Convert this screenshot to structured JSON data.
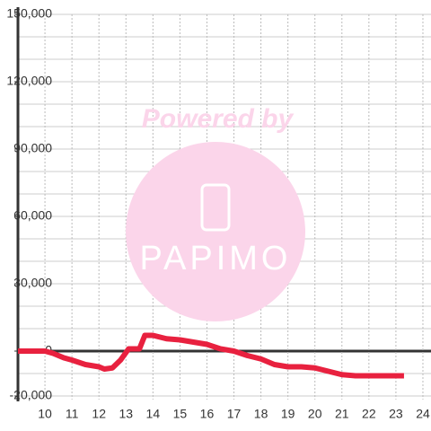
{
  "chart_data": {
    "type": "line",
    "x": [
      9,
      10,
      10.3,
      10.7,
      11,
      11.5,
      12,
      12.2,
      12.5,
      12.8,
      13.1,
      13.5,
      13.7,
      14,
      14.5,
      15,
      15.5,
      16,
      16.5,
      17,
      17.5,
      18,
      18.5,
      19,
      19.5,
      20,
      20.5,
      21,
      21.5,
      22,
      23.3
    ],
    "series": [
      {
        "color": "#e8213f",
        "values": [
          0,
          0,
          -1000,
          -3000,
          -4000,
          -6000,
          -7000,
          -8000,
          -7500,
          -4000,
          1000,
          1000,
          7000,
          7000,
          5500,
          5000,
          4000,
          3000,
          1000,
          0,
          -2000,
          -3500,
          -6000,
          -7000,
          -7000,
          -7500,
          -9000,
          -10500,
          -11000,
          -11000,
          -11000
        ]
      }
    ],
    "xlim": [
      9,
      24.3
    ],
    "xticks": [
      10,
      11,
      12,
      13,
      14,
      15,
      16,
      17,
      18,
      19,
      20,
      21,
      22,
      23,
      24
    ],
    "ylim": [
      -20000,
      150000
    ],
    "yticks": [
      {
        "value": -20000,
        "label": "-20,000"
      },
      0,
      {
        "value": 30000,
        "label": "30,000"
      },
      {
        "value": 60000,
        "label": "60,000"
      },
      {
        "value": 90000,
        "label": "90,000"
      },
      {
        "value": 120000,
        "label": "120,000"
      },
      {
        "value": 150000,
        "label": "150,000"
      }
    ],
    "y_minor_grid": [
      -10000,
      10000,
      20000,
      40000,
      50000,
      70000,
      80000,
      100000,
      110000,
      130000,
      140000
    ],
    "grid": true,
    "watermark": {
      "text": "Powered by",
      "logo": "PAPIMO"
    }
  }
}
